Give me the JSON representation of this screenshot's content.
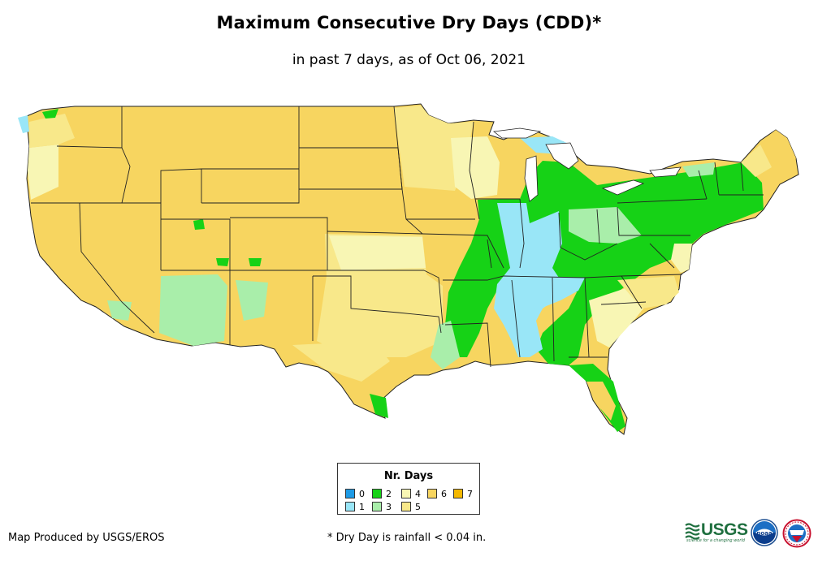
{
  "title": "Maximum Consecutive Dry Days (CDD)*",
  "subtitle": "in past 7 days, as of Oct 06, 2021",
  "legend": {
    "title": "Nr. Days",
    "items": [
      {
        "label": "0",
        "color": "#1e9be6"
      },
      {
        "label": "1",
        "color": "#99e6f7"
      },
      {
        "label": "2",
        "color": "#16d216"
      },
      {
        "label": "3",
        "color": "#a9eeaa"
      },
      {
        "label": "4",
        "color": "#f8f6b4"
      },
      {
        "label": "5",
        "color": "#f8e88a"
      },
      {
        "label": "6",
        "color": "#f7d560"
      },
      {
        "label": "7",
        "color": "#f4b800"
      }
    ]
  },
  "credit": "Map Produced by USGS/EROS",
  "footnote": "* Dry Day is rainfall < 0.04 in.",
  "logos": {
    "usgs_text": "USGS",
    "usgs_tagline": "science for a changing world",
    "noaa_text": "noaa"
  }
}
